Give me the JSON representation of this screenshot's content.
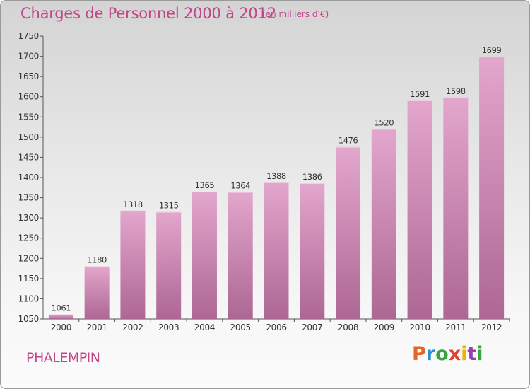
{
  "header": {
    "title": "Charges de Personnel 2000 à 2012",
    "subtitle": "(en milliers d'€)"
  },
  "footer": {
    "commune": "PHALEMPIN",
    "logo": {
      "text": "Proxiti",
      "letter_colors": [
        "#e2662a",
        "#2a8fd1",
        "#3aa53f",
        "#e2402e",
        "#f0b400",
        "#9a3fa8",
        "#3aa53f"
      ]
    }
  },
  "colors": {
    "accent": "#c2448a",
    "bar_top": "#e3a6cc",
    "bar_bottom": "#ad6794",
    "axis": "#555555"
  },
  "chart_data": {
    "type": "bar",
    "title": "Charges de Personnel 2000 à 2012",
    "subtitle": "(en milliers d'€)",
    "xlabel": "",
    "ylabel": "",
    "categories": [
      "2000",
      "2001",
      "2002",
      "2003",
      "2004",
      "2005",
      "2006",
      "2007",
      "2008",
      "2009",
      "2010",
      "2011",
      "2012"
    ],
    "values": [
      1061,
      1180,
      1318,
      1315,
      1365,
      1364,
      1388,
      1386,
      1476,
      1520,
      1591,
      1598,
      1699
    ],
    "ylim": [
      1050,
      1750
    ],
    "yticks": [
      1050,
      1100,
      1150,
      1200,
      1250,
      1300,
      1350,
      1400,
      1450,
      1500,
      1550,
      1600,
      1650,
      1700,
      1750
    ],
    "data_labels": true,
    "grid": false,
    "legend": "none"
  }
}
